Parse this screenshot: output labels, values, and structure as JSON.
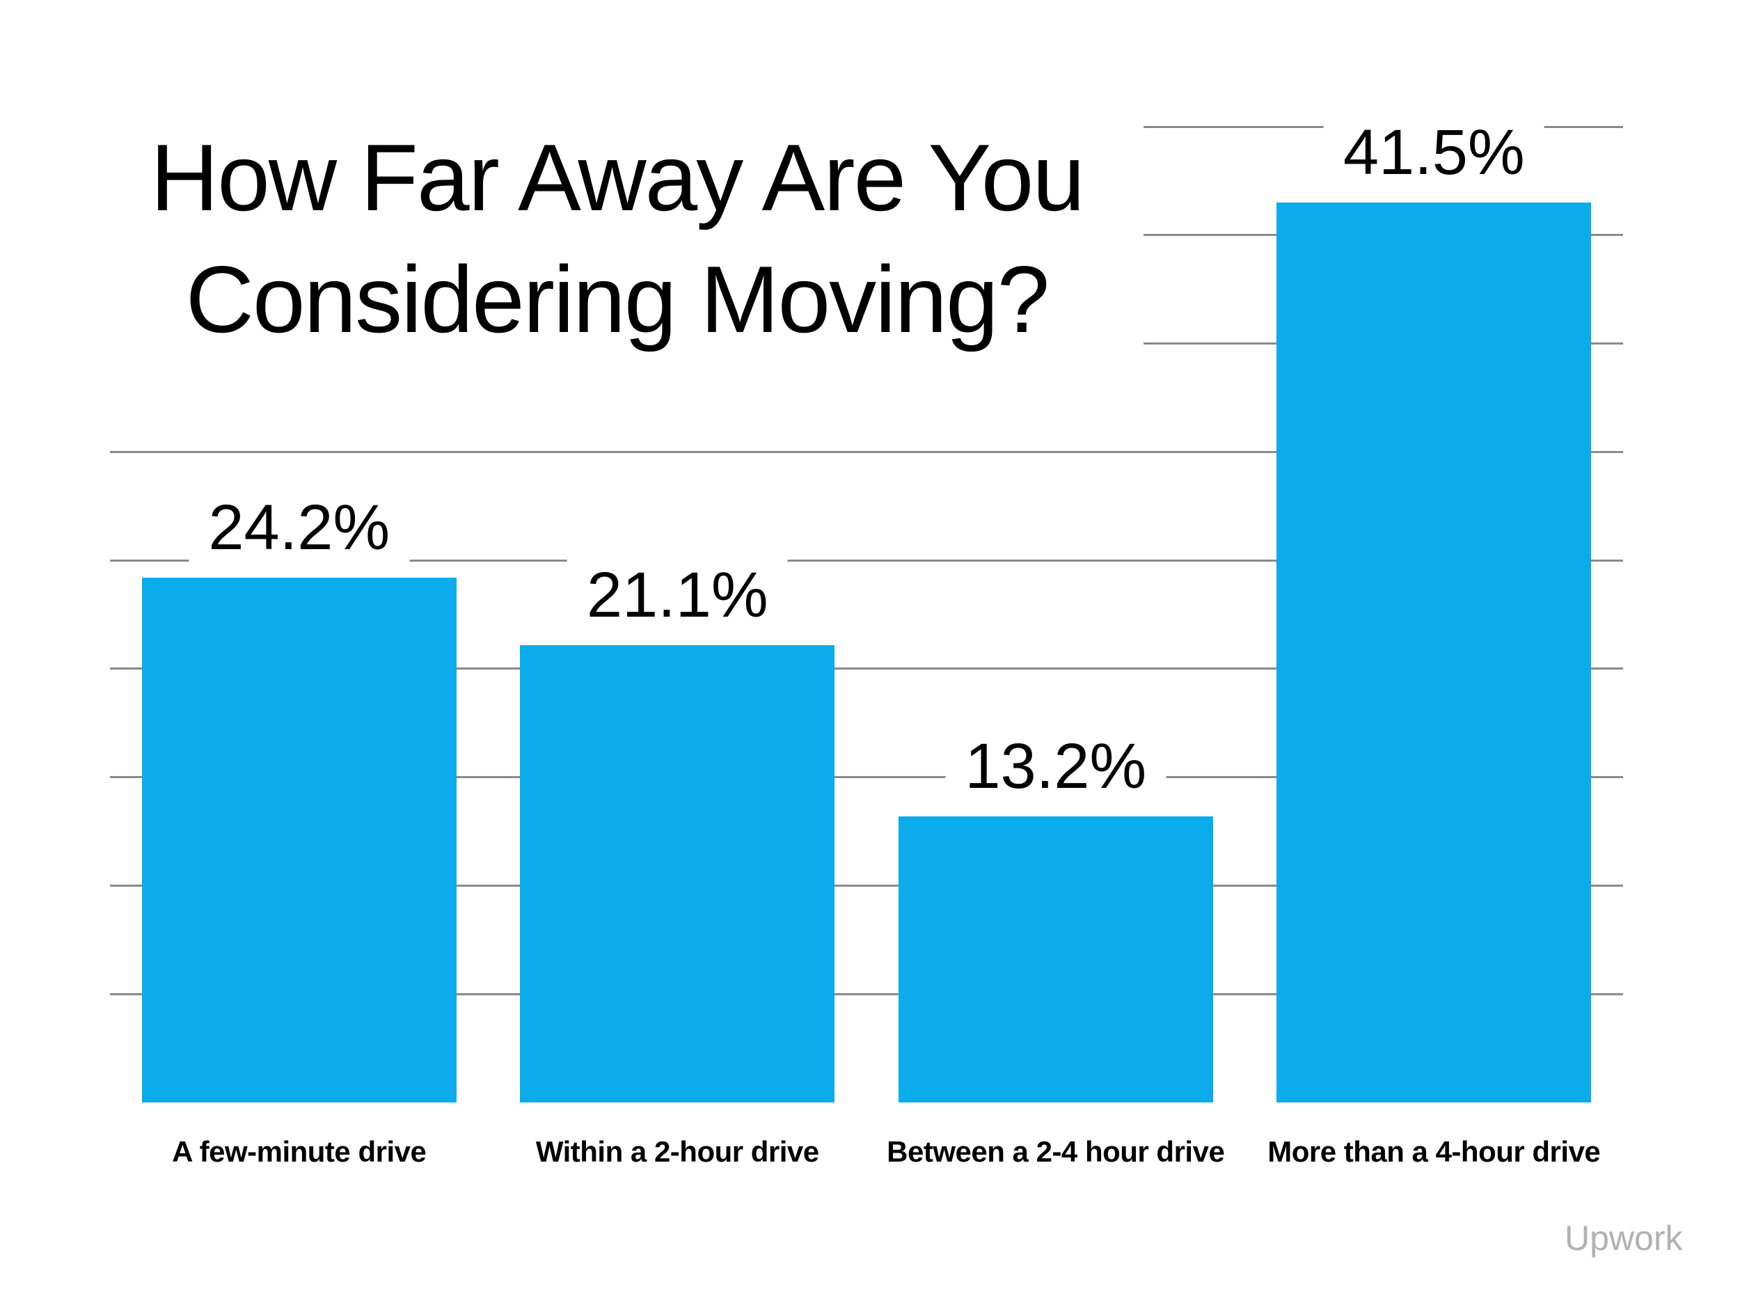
{
  "title": {
    "line1": "How Far Away Are You",
    "line2": "Considering Moving?"
  },
  "watermark": {
    "text": "Upwork",
    "color": "#b1b1b1"
  },
  "chart_data": {
    "type": "bar",
    "title": "How Far Away Are You Considering Moving?",
    "categories": [
      "A few-minute drive",
      "Within a 2-hour drive",
      "Between a 2-4 hour drive",
      "More than a 4-hour drive"
    ],
    "values": [
      24.2,
      21.1,
      13.2,
      41.5
    ],
    "value_labels": [
      "24.2%",
      "21.1%",
      "13.2%",
      "41.5%"
    ],
    "xlabel": "",
    "ylabel": "",
    "ylim": [
      0,
      45
    ],
    "gridline_step_percent": 5,
    "grid": true,
    "legend": "none",
    "bar_color": "#0aaceb",
    "gridline_color": "#8a8a8a",
    "label_text_color": "#000000",
    "background_color": "#ffffff"
  }
}
